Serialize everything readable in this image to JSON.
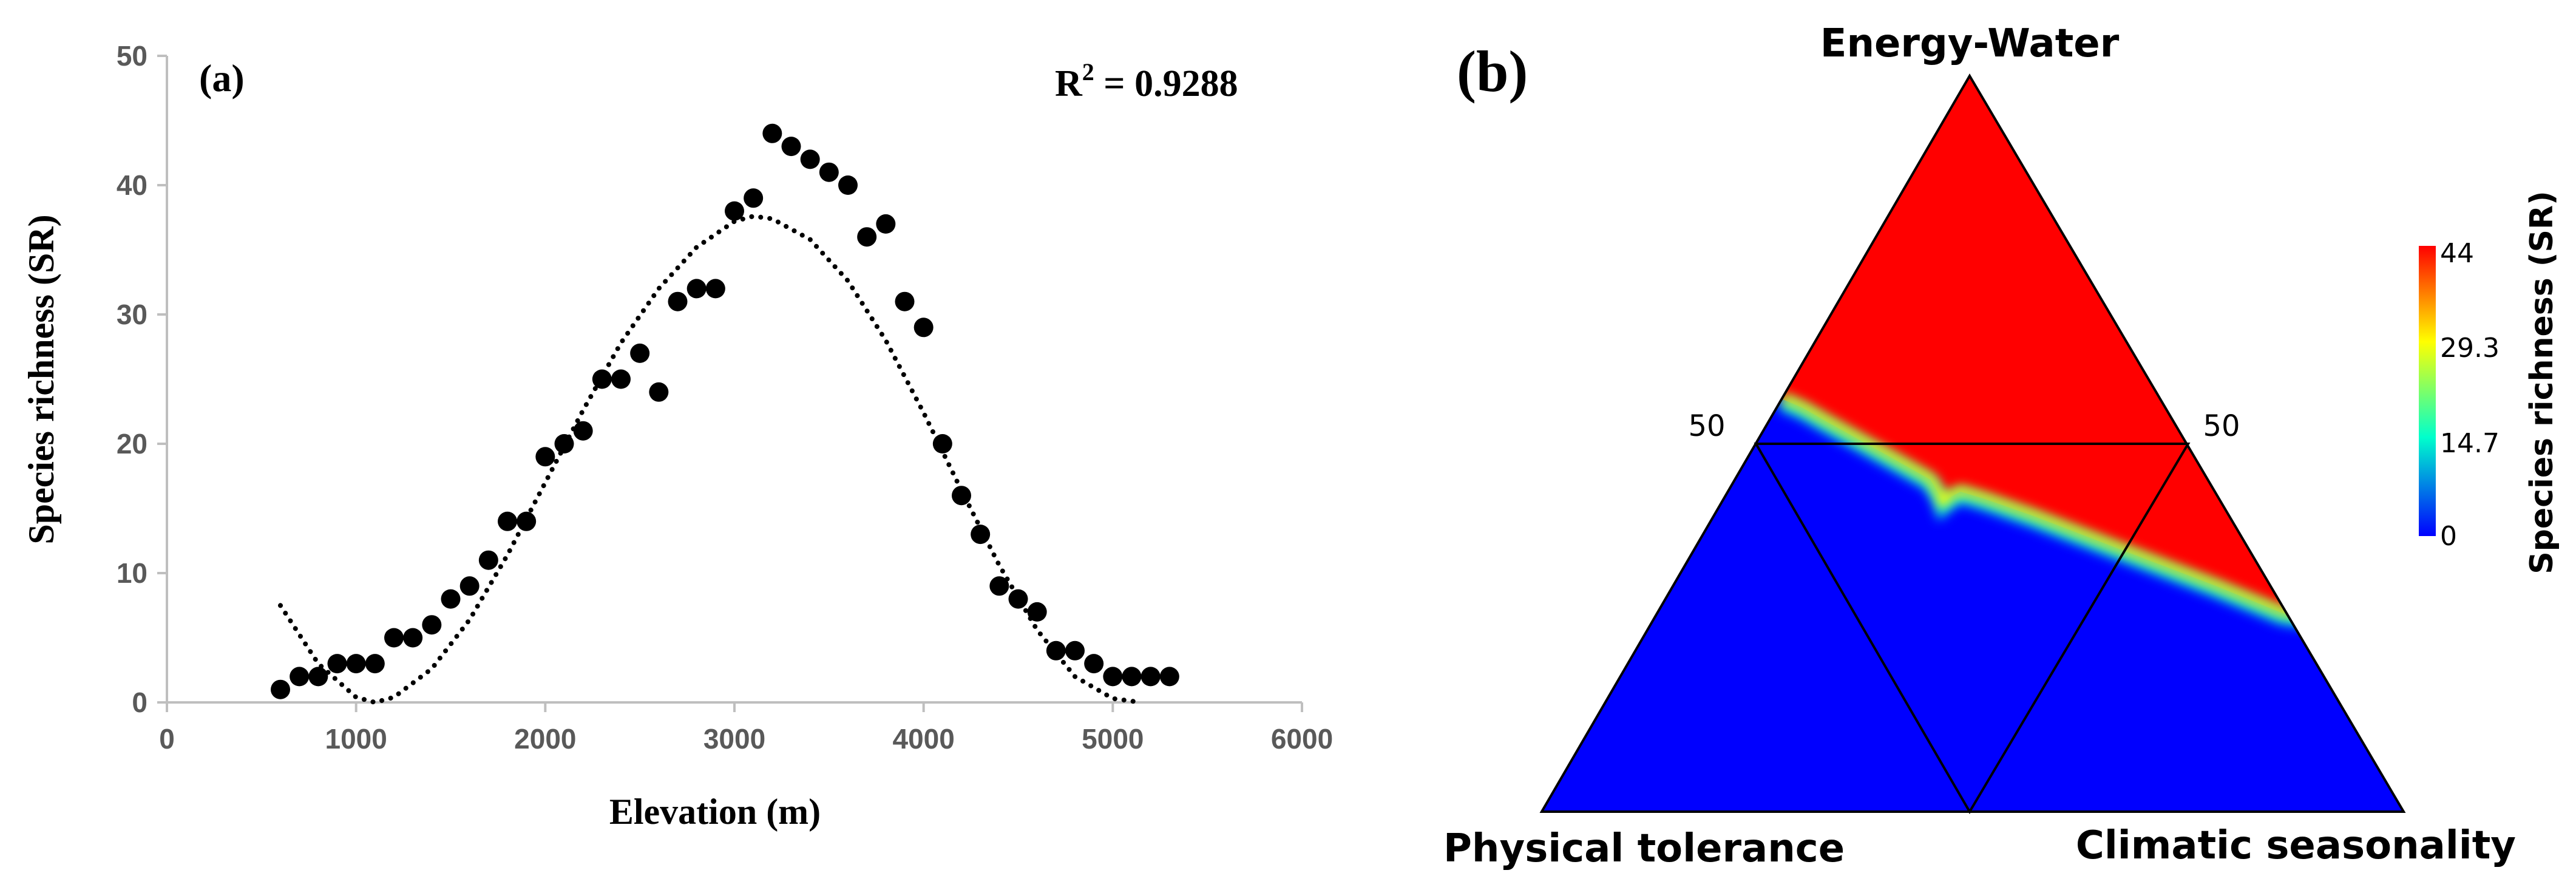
{
  "panel_a": {
    "label": "(a)",
    "r2_prefix": "R",
    "r2_sup": "2",
    "r2_value": " = 0.9288"
  },
  "panel_b": {
    "label": "(b)",
    "vertex_top": "Energy-Water",
    "vertex_left": "Physical tolerance",
    "vertex_right": "Climatic seasonality",
    "side_label_left": "50",
    "side_label_right": "50",
    "colorbar_title": "Species richness (SR)",
    "colorbar_ticks": [
      "44",
      "29.3",
      "14.7",
      "0"
    ],
    "colorbar_colors": [
      "#ff0000",
      "#ffff00",
      "#00ffcc",
      "#0000ff"
    ],
    "region_high_color": "#ff0000",
    "region_low_color": "#0000ff"
  },
  "chart_data": [
    {
      "type": "scatter",
      "xlabel": "Elevation (m)",
      "ylabel": "Species richness (SR)",
      "xlim": [
        0,
        6000
      ],
      "ylim": [
        0,
        50
      ],
      "x_ticks": [
        "0",
        "1000",
        "2000",
        "3000",
        "4000",
        "5000",
        "6000"
      ],
      "y_ticks": [
        "0",
        "10",
        "20",
        "30",
        "40",
        "50"
      ],
      "grid": false,
      "marker_color": "#000000",
      "x": [
        600,
        700,
        800,
        900,
        1000,
        1100,
        1200,
        1300,
        1400,
        1500,
        1600,
        1700,
        1800,
        1900,
        2000,
        2100,
        2200,
        2300,
        2400,
        2500,
        2600,
        2700,
        2800,
        2900,
        3000,
        3100,
        3200,
        3300,
        3400,
        3500,
        3600,
        3700,
        3800,
        3900,
        4000,
        4100,
        4200,
        4300,
        4400,
        4500,
        4600,
        4700,
        4800,
        4900,
        5000,
        5100,
        5200,
        5300
      ],
      "y": [
        1,
        2,
        2,
        3,
        3,
        3,
        5,
        5,
        6,
        8,
        9,
        11,
        14,
        14,
        19,
        20,
        21,
        25,
        25,
        27,
        24,
        31,
        32,
        32,
        38,
        39,
        44,
        43,
        42,
        41,
        40,
        36,
        37,
        31,
        29,
        20,
        16,
        13,
        9,
        8,
        7,
        4,
        4,
        3,
        2,
        2,
        2,
        2
      ],
      "trendline": {
        "style": "dotted",
        "x": [
          600,
          800,
          1000,
          1100,
          1200,
          1400,
          1600,
          1800,
          2000,
          2200,
          2400,
          2600,
          2800,
          3000,
          3100,
          3200,
          3400,
          3600,
          3800,
          4000,
          4200,
          4400,
          4600,
          4800,
          5000,
          5150
        ],
        "y": [
          7.5,
          3.0,
          0.4,
          0.0,
          0.4,
          2.6,
          6.4,
          11.4,
          17.0,
          22.6,
          27.8,
          32.0,
          35.2,
          37.2,
          37.6,
          37.4,
          35.8,
          32.6,
          28.0,
          22.4,
          16.4,
          10.6,
          5.6,
          2.0,
          0.3,
          0.0
        ]
      }
    },
    {
      "type": "heatmap",
      "title": "",
      "value_range": [
        0,
        44
      ],
      "boundary_left_fraction": 0.5,
      "boundary_right_fraction": 0.31,
      "notch_position_fraction": 0.43
    }
  ]
}
